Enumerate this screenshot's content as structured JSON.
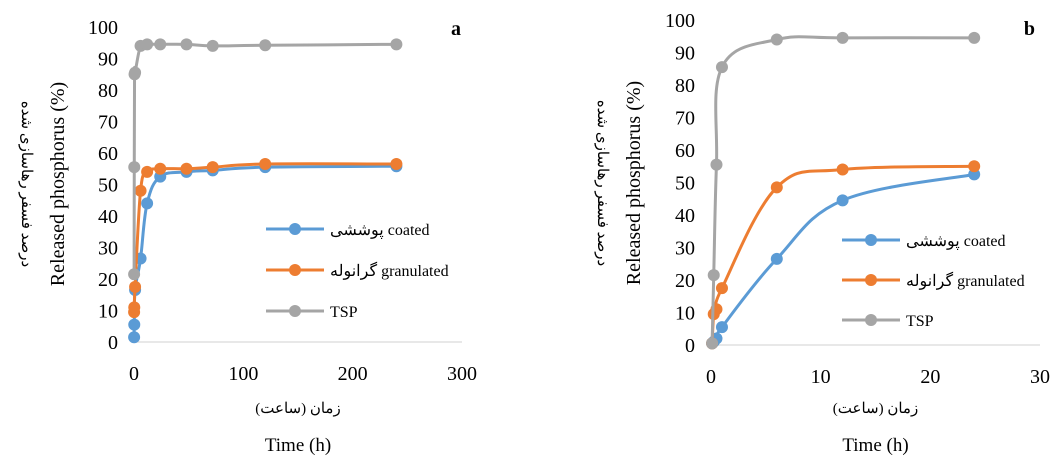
{
  "chart_data": [
    {
      "type": "line",
      "panel_label": "a",
      "xlabel": "Time (h)",
      "xlabel_fa": "زمان (ساعت)",
      "ylabel": "Released phosphorus (%)",
      "ylabel_fa": "درصد فسفر رهاسازی شده",
      "xlim": [
        0,
        300
      ],
      "ylim": [
        0,
        100
      ],
      "xticks": [
        "0",
        "100",
        "200",
        "300"
      ],
      "yticks": [
        "0",
        "10",
        "20",
        "30",
        "40",
        "50",
        "60",
        "70",
        "80",
        "90",
        "100"
      ],
      "grid": false,
      "legend_position": "right-center",
      "series": [
        {
          "name": "پوششی coated",
          "color": "#5b9bd5",
          "x": [
            0.1,
            0.25,
            1,
            6,
            12,
            24,
            48,
            72,
            120,
            240
          ],
          "y": [
            1.5,
            5.5,
            16.5,
            26.5,
            44,
            52.5,
            54,
            54.5,
            55.5,
            55.8
          ]
        },
        {
          "name": "گرانوله granulated",
          "color": "#ed7d31",
          "x": [
            0.1,
            0.25,
            1,
            6,
            12,
            24,
            48,
            72,
            120,
            240
          ],
          "y": [
            9.5,
            11,
            17.5,
            48,
            54,
            55,
            55,
            55.5,
            56.5,
            56.5
          ]
        },
        {
          "name": "TSP",
          "color": "#a5a5a5",
          "x": [
            0.1,
            0.25,
            0.5,
            1,
            6,
            12,
            24,
            48,
            72,
            120,
            240
          ],
          "y": [
            21.5,
            55.5,
            85,
            85.5,
            94,
            94.5,
            94.5,
            94.5,
            94,
            94.2,
            94.5
          ]
        }
      ]
    },
    {
      "type": "line",
      "panel_label": "b",
      "xlabel": "Time (h)",
      "xlabel_fa": "زمان (ساعت)",
      "ylabel": "Released phosphorus (%)",
      "ylabel_fa": "درصد فسفر رهاسازی شده",
      "xlim": [
        0,
        30
      ],
      "ylim": [
        0,
        100
      ],
      "xticks": [
        "0",
        "10",
        "20",
        "30"
      ],
      "yticks": [
        "0",
        "10",
        "20",
        "30",
        "40",
        "50",
        "60",
        "70",
        "80",
        "90",
        "100"
      ],
      "grid": false,
      "legend_position": "right-bottom",
      "series": [
        {
          "name": "پوششی coated",
          "color": "#5b9bd5",
          "x": [
            0.1,
            0.25,
            0.5,
            1,
            6,
            12,
            24
          ],
          "y": [
            0.5,
            1,
            2,
            5.5,
            26.5,
            44.5,
            52.5
          ]
        },
        {
          "name": "گرانوله granulated",
          "color": "#ed7d31",
          "x": [
            0.1,
            0.25,
            0.5,
            1,
            6,
            12,
            24
          ],
          "y": [
            0.5,
            9.5,
            11,
            17.5,
            48.5,
            54,
            55
          ]
        },
        {
          "name": "TSP",
          "color": "#a5a5a5",
          "x": [
            0.1,
            0.25,
            0.5,
            1,
            6,
            12,
            24
          ],
          "y": [
            0.5,
            21.5,
            55.5,
            85.5,
            94,
            94.5,
            94.5
          ]
        }
      ]
    }
  ]
}
